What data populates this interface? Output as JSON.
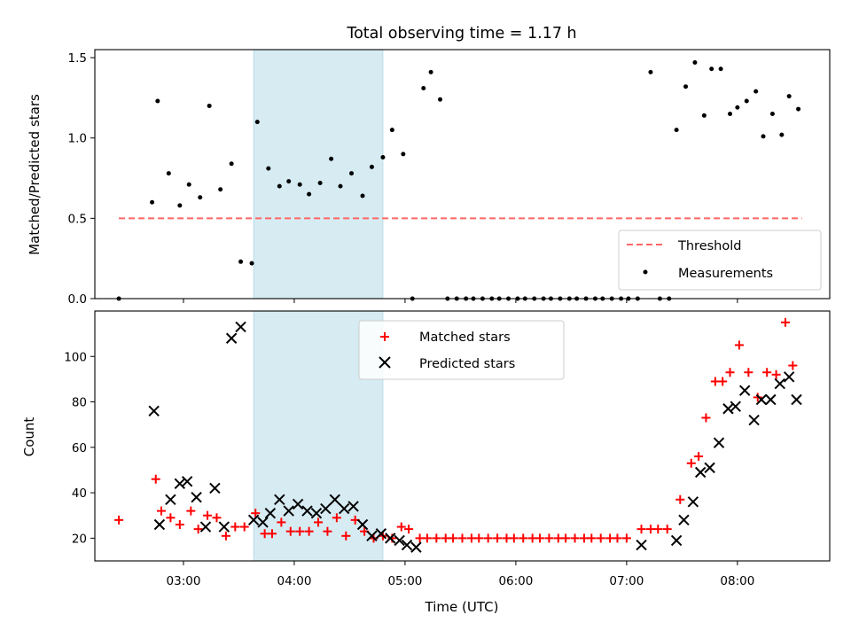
{
  "chart_data": [
    {
      "type": "scatter",
      "title": "Total observing time = 1.17 h",
      "ylabel": "Matched/Predicted stars",
      "xlabel": "",
      "ylim": [
        0,
        1.55
      ],
      "xlim": [
        "02:12",
        "08:50"
      ],
      "yticks": [
        "0.0",
        "0.5",
        "1.0",
        "1.5"
      ],
      "shaded_region": {
        "from": "03:38",
        "to": "04:48",
        "color": "#add8e6"
      },
      "threshold": {
        "name": "Threshold",
        "value": 0.5,
        "from": "02:25",
        "to": "08:35",
        "color": "#ff6666"
      },
      "legend": {
        "position": "lower-right",
        "entries": [
          "Threshold",
          "Measurements"
        ]
      },
      "series": [
        {
          "name": "Measurements",
          "marker": "dot",
          "color": "#000000",
          "points": [
            [
              "02:25",
              0.0
            ],
            [
              "02:43",
              0.6
            ],
            [
              "02:46",
              1.23
            ],
            [
              "02:52",
              0.78
            ],
            [
              "02:58",
              0.58
            ],
            [
              "03:03",
              0.71
            ],
            [
              "03:09",
              0.63
            ],
            [
              "03:14",
              1.2
            ],
            [
              "03:20",
              0.68
            ],
            [
              "03:26",
              0.84
            ],
            [
              "03:31",
              0.23
            ],
            [
              "03:37",
              0.22
            ],
            [
              "03:40",
              1.1
            ],
            [
              "03:46",
              0.81
            ],
            [
              "03:52",
              0.7
            ],
            [
              "03:57",
              0.73
            ],
            [
              "04:03",
              0.71
            ],
            [
              "04:08",
              0.65
            ],
            [
              "04:14",
              0.72
            ],
            [
              "04:20",
              0.87
            ],
            [
              "04:25",
              0.7
            ],
            [
              "04:31",
              0.78
            ],
            [
              "04:37",
              0.64
            ],
            [
              "04:42",
              0.82
            ],
            [
              "04:48",
              0.88
            ],
            [
              "04:53",
              1.05
            ],
            [
              "04:59",
              0.9
            ],
            [
              "05:04",
              0.0
            ],
            [
              "05:10",
              1.31
            ],
            [
              "05:14",
              1.41
            ],
            [
              "05:19",
              1.24
            ],
            [
              "05:23",
              0.0
            ],
            [
              "05:28",
              0.0
            ],
            [
              "05:33",
              0.0
            ],
            [
              "05:37",
              0.0
            ],
            [
              "05:42",
              0.0
            ],
            [
              "05:47",
              0.0
            ],
            [
              "05:51",
              0.0
            ],
            [
              "05:56",
              0.0
            ],
            [
              "06:01",
              0.0
            ],
            [
              "06:05",
              0.0
            ],
            [
              "06:10",
              0.0
            ],
            [
              "06:15",
              0.0
            ],
            [
              "06:19",
              0.0
            ],
            [
              "06:24",
              0.0
            ],
            [
              "06:29",
              0.0
            ],
            [
              "06:33",
              0.0
            ],
            [
              "06:38",
              0.0
            ],
            [
              "06:43",
              0.0
            ],
            [
              "06:47",
              0.0
            ],
            [
              "06:52",
              0.0
            ],
            [
              "06:57",
              0.0
            ],
            [
              "07:01",
              0.0
            ],
            [
              "07:06",
              0.0
            ],
            [
              "07:13",
              1.41
            ],
            [
              "07:18",
              0.0
            ],
            [
              "07:23",
              0.0
            ],
            [
              "07:27",
              1.05
            ],
            [
              "07:32",
              1.32
            ],
            [
              "07:37",
              1.47
            ],
            [
              "07:42",
              1.14
            ],
            [
              "07:46",
              1.43
            ],
            [
              "07:51",
              1.43
            ],
            [
              "07:56",
              1.15
            ],
            [
              "08:00",
              1.19
            ],
            [
              "08:05",
              1.23
            ],
            [
              "08:10",
              1.29
            ],
            [
              "08:14",
              1.01
            ],
            [
              "08:19",
              1.15
            ],
            [
              "08:24",
              1.02
            ],
            [
              "08:28",
              1.26
            ],
            [
              "08:33",
              1.18
            ]
          ]
        }
      ]
    },
    {
      "type": "scatter",
      "title": "",
      "ylabel": "Count",
      "xlabel": "Time (UTC)",
      "ylim": [
        10,
        120
      ],
      "xlim": [
        "02:12",
        "08:50"
      ],
      "xticks": [
        "03:00",
        "04:00",
        "05:00",
        "06:00",
        "07:00",
        "08:00"
      ],
      "yticks": [
        "20",
        "40",
        "60",
        "80",
        "100"
      ],
      "shaded_region": {
        "from": "03:38",
        "to": "04:48",
        "color": "#add8e6"
      },
      "legend": {
        "position": "upper-center",
        "entries": [
          "Matched stars",
          "Predicted stars"
        ]
      },
      "series": [
        {
          "name": "Matched stars",
          "marker": "plus",
          "color": "#ff0000",
          "points": [
            [
              "02:25",
              28
            ],
            [
              "02:45",
              46
            ],
            [
              "02:48",
              32
            ],
            [
              "02:53",
              29
            ],
            [
              "02:58",
              26
            ],
            [
              "03:04",
              32
            ],
            [
              "03:08",
              24
            ],
            [
              "03:13",
              30
            ],
            [
              "03:18",
              29
            ],
            [
              "03:23",
              21
            ],
            [
              "03:28",
              25
            ],
            [
              "03:33",
              25
            ],
            [
              "03:39",
              31
            ],
            [
              "03:44",
              22
            ],
            [
              "03:48",
              22
            ],
            [
              "03:53",
              27
            ],
            [
              "03:58",
              23
            ],
            [
              "04:03",
              23
            ],
            [
              "04:08",
              23
            ],
            [
              "04:13",
              27
            ],
            [
              "04:18",
              23
            ],
            [
              "04:23",
              29
            ],
            [
              "04:28",
              21
            ],
            [
              "04:33",
              28
            ],
            [
              "04:38",
              23
            ],
            [
              "04:43",
              20
            ],
            [
              "04:48",
              21
            ],
            [
              "04:53",
              20
            ],
            [
              "04:58",
              25
            ],
            [
              "05:02",
              24
            ],
            [
              "05:08",
              20
            ],
            [
              "05:12",
              20
            ],
            [
              "05:17",
              20
            ],
            [
              "05:22",
              20
            ],
            [
              "05:26",
              20
            ],
            [
              "05:31",
              20
            ],
            [
              "05:36",
              20
            ],
            [
              "05:40",
              20
            ],
            [
              "05:45",
              20
            ],
            [
              "05:50",
              20
            ],
            [
              "05:55",
              20
            ],
            [
              "05:59",
              20
            ],
            [
              "06:04",
              20
            ],
            [
              "06:09",
              20
            ],
            [
              "06:13",
              20
            ],
            [
              "06:18",
              20
            ],
            [
              "06:23",
              20
            ],
            [
              "06:27",
              20
            ],
            [
              "06:32",
              20
            ],
            [
              "06:37",
              20
            ],
            [
              "06:41",
              20
            ],
            [
              "06:46",
              20
            ],
            [
              "06:51",
              20
            ],
            [
              "06:55",
              20
            ],
            [
              "07:00",
              20
            ],
            [
              "07:08",
              24
            ],
            [
              "07:13",
              24
            ],
            [
              "07:17",
              24
            ],
            [
              "07:22",
              24
            ],
            [
              "07:29",
              37
            ],
            [
              "07:35",
              53
            ],
            [
              "07:39",
              56
            ],
            [
              "07:43",
              73
            ],
            [
              "07:48",
              89
            ],
            [
              "07:52",
              89
            ],
            [
              "07:56",
              93
            ],
            [
              "08:01",
              105
            ],
            [
              "08:06",
              93
            ],
            [
              "08:11",
              82
            ],
            [
              "08:16",
              93
            ],
            [
              "08:21",
              92
            ],
            [
              "08:26",
              115
            ],
            [
              "08:30",
              96
            ]
          ]
        },
        {
          "name": "Predicted stars",
          "marker": "x",
          "color": "#000000",
          "points": [
            [
              "02:44",
              76
            ],
            [
              "02:47",
              26
            ],
            [
              "02:53",
              37
            ],
            [
              "02:58",
              44
            ],
            [
              "03:02",
              45
            ],
            [
              "03:07",
              38
            ],
            [
              "03:12",
              25
            ],
            [
              "03:17",
              42
            ],
            [
              "03:22",
              25
            ],
            [
              "03:26",
              108
            ],
            [
              "03:31",
              113
            ],
            [
              "03:38",
              28
            ],
            [
              "03:43",
              27
            ],
            [
              "03:47",
              31
            ],
            [
              "03:52",
              37
            ],
            [
              "03:57",
              32
            ],
            [
              "04:02",
              35
            ],
            [
              "04:07",
              32
            ],
            [
              "04:12",
              31
            ],
            [
              "04:17",
              33
            ],
            [
              "04:22",
              37
            ],
            [
              "04:27",
              33
            ],
            [
              "04:32",
              34
            ],
            [
              "04:37",
              26
            ],
            [
              "04:42",
              21
            ],
            [
              "04:47",
              22
            ],
            [
              "04:52",
              20
            ],
            [
              "04:57",
              19
            ],
            [
              "05:01",
              17
            ],
            [
              "05:06",
              16
            ],
            [
              "07:08",
              17
            ],
            [
              "07:27",
              19
            ],
            [
              "07:31",
              28
            ],
            [
              "07:36",
              36
            ],
            [
              "07:40",
              49
            ],
            [
              "07:45",
              51
            ],
            [
              "07:50",
              62
            ],
            [
              "07:55",
              77
            ],
            [
              "07:59",
              78
            ],
            [
              "08:04",
              85
            ],
            [
              "08:09",
              72
            ],
            [
              "08:13",
              81
            ],
            [
              "08:18",
              81
            ],
            [
              "08:23",
              88
            ],
            [
              "08:28",
              91
            ],
            [
              "08:32",
              81
            ]
          ]
        }
      ]
    }
  ]
}
